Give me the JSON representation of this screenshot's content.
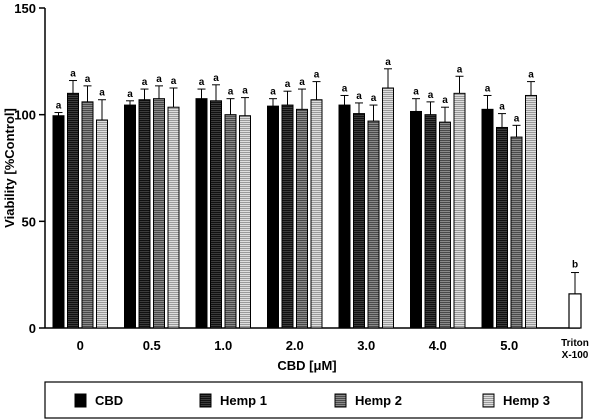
{
  "chart_data": {
    "type": "bar",
    "xlabel": "CBD [μM]",
    "ylabel": "Viability [%Control]",
    "ylim": [
      0,
      150
    ],
    "yticks": [
      0,
      50,
      100,
      150
    ],
    "categories": [
      "0",
      "0.5",
      "1.0",
      "2.0",
      "3.0",
      "4.0",
      "5.0"
    ],
    "series": [
      {
        "name": "CBD",
        "color": "#000000",
        "pattern": "solid",
        "values": [
          99.5,
          104.5,
          107.5,
          104,
          104.5,
          101.5,
          102.5
        ],
        "errors": [
          1.5,
          2,
          4.5,
          3.5,
          4.5,
          6,
          6.5
        ],
        "labels": [
          "a",
          "a",
          "a",
          "a",
          "a",
          "a",
          "a"
        ]
      },
      {
        "name": "Hemp 1",
        "color": "#2a2a2a",
        "pattern": "hlines-fine",
        "values": [
          110,
          107,
          106.5,
          104.5,
          100.5,
          100,
          94
        ],
        "errors": [
          6,
          5,
          7.5,
          6.5,
          5,
          6,
          6.5
        ],
        "labels": [
          "a",
          "a",
          "a",
          "a",
          "a",
          "a",
          "a"
        ]
      },
      {
        "name": "Hemp 2",
        "color": "#6e6e6e",
        "pattern": "hlines-mid",
        "values": [
          106,
          107.5,
          100,
          102.5,
          97,
          96.5,
          89.5
        ],
        "errors": [
          7.5,
          6,
          7.5,
          9.5,
          7.5,
          7,
          5.5
        ],
        "labels": [
          "a",
          "a",
          "a",
          "a",
          "a",
          "a",
          "a"
        ]
      },
      {
        "name": "Hemp 3",
        "color": "#bdbdbd",
        "pattern": "hlines-light",
        "values": [
          97.5,
          103.5,
          99.5,
          107,
          112.5,
          110,
          109
        ],
        "errors": [
          9.5,
          9,
          8.5,
          8.5,
          9,
          8,
          6.5
        ],
        "labels": [
          "a",
          "a",
          "a",
          "a",
          "a",
          "a",
          "a"
        ]
      }
    ],
    "control": {
      "label_line1": "Triton",
      "label_line2": "X-100",
      "value": 16,
      "error": 10,
      "label": "b",
      "color": "#ffffff"
    },
    "legend_position": "bottom"
  }
}
